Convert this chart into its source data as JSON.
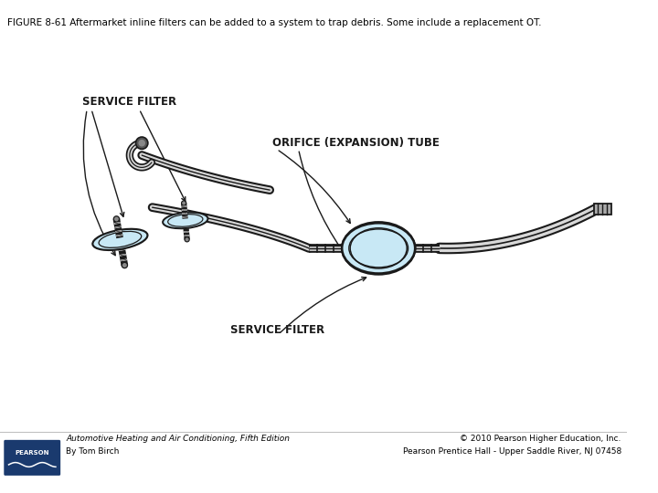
{
  "title": "FIGURE 8-61 Aftermarket inline filters can be added to a system to trap debris. Some include a replacement OT.",
  "footer_left_line1": "Automotive Heating and Air Conditioning, Fifth Edition",
  "footer_left_line2": "By Tom Birch",
  "footer_right_line1": "© 2010 Pearson Higher Education, Inc.",
  "footer_right_line2": "Pearson Prentice Hall - Upper Saddle River, NJ 07458",
  "bg_color": "#ffffff",
  "title_fontsize": 7.5,
  "footer_fontsize": 6.5,
  "label_fontsize": 8.5,
  "pearson_box_color": "#1a3a6e",
  "light_blue": "#c8e8f5",
  "dark": "#1a1a1a",
  "gray_tube": "#aaaaaa"
}
